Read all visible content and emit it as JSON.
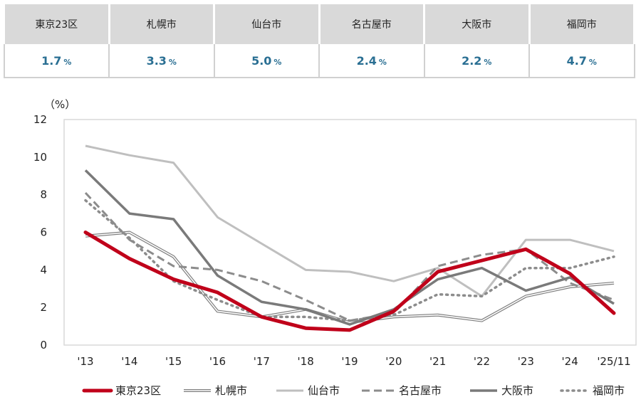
{
  "table": {
    "headers": [
      "東京23区",
      "札幌市",
      "仙台市",
      "名古屋市",
      "大阪市",
      "福岡市"
    ],
    "values": [
      "1.7",
      "3.3",
      "5.0",
      "2.4",
      "2.2",
      "4.7"
    ],
    "unit": "%"
  },
  "chart_data": {
    "type": "line",
    "ylabel": "（%）",
    "ylim": [
      0,
      12
    ],
    "yticks": [
      0,
      2,
      4,
      6,
      8,
      10,
      12
    ],
    "categories": [
      "'13",
      "'14",
      "'15",
      "'16",
      "'17",
      "'18",
      "'19",
      "'20",
      "'21",
      "'22",
      "'23",
      "'24",
      "'25/11"
    ],
    "legend_position": "bottom",
    "grid": false,
    "series": [
      {
        "name": "東京23区",
        "style": "thick-solid",
        "color": "#c0001a",
        "values": [
          6.0,
          4.6,
          3.5,
          2.8,
          1.5,
          0.9,
          0.8,
          1.8,
          3.9,
          4.5,
          5.1,
          3.8,
          1.7
        ]
      },
      {
        "name": "札幌市",
        "style": "double-line",
        "color": "#7f7f7f",
        "values": [
          5.8,
          6.0,
          4.7,
          1.8,
          1.5,
          1.9,
          1.2,
          1.5,
          1.6,
          1.3,
          2.6,
          3.1,
          3.3
        ]
      },
      {
        "name": "仙台市",
        "style": "solid-light",
        "color": "#bfbfbf",
        "values": [
          10.6,
          10.1,
          9.7,
          6.8,
          5.4,
          4.0,
          3.9,
          3.4,
          4.1,
          2.6,
          5.6,
          5.6,
          5.0
        ]
      },
      {
        "name": "名古屋市",
        "style": "dashed",
        "color": "#8c8c8c",
        "values": [
          8.1,
          5.6,
          4.2,
          4.0,
          3.4,
          2.4,
          1.3,
          1.7,
          4.2,
          4.8,
          5.1,
          3.3,
          2.4
        ]
      },
      {
        "name": "大阪市",
        "style": "solid-dark",
        "color": "#7a7a7a",
        "values": [
          9.3,
          7.0,
          6.7,
          3.7,
          2.3,
          1.9,
          1.1,
          1.9,
          3.5,
          4.1,
          2.9,
          3.6,
          2.2
        ]
      },
      {
        "name": "福岡市",
        "style": "dotted",
        "color": "#8c8c8c",
        "values": [
          7.7,
          5.7,
          3.4,
          2.4,
          1.5,
          1.5,
          1.3,
          1.6,
          2.7,
          2.6,
          4.1,
          4.1,
          4.7
        ]
      }
    ]
  }
}
